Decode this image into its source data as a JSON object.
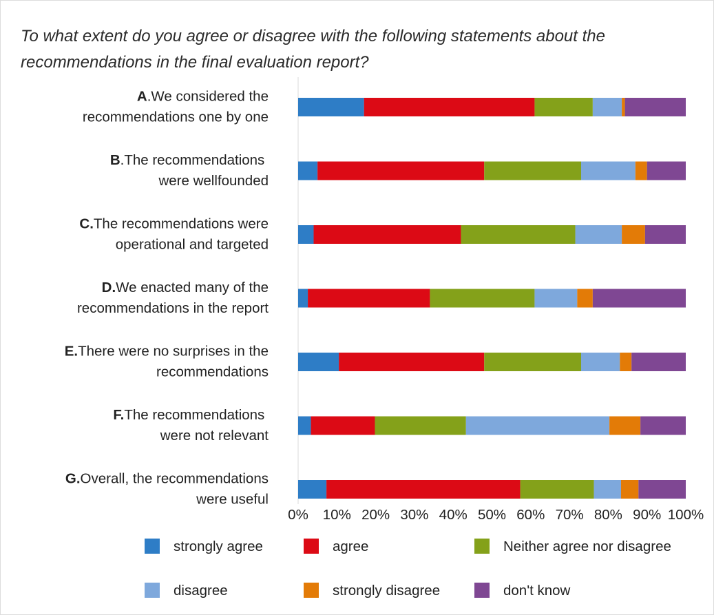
{
  "chart_data": {
    "type": "bar",
    "orientation": "horizontal",
    "stacked": true,
    "percent": true,
    "title": "To what extent do you agree or disagree with the following statements about the recommendations in the final evaluation report?",
    "categories": [
      {
        "letter": "A",
        "lines": [
          ".We considered the",
          "recommendations one by one"
        ]
      },
      {
        "letter": "B",
        "lines": [
          ".The recommendations ",
          "were wellfounded"
        ]
      },
      {
        "letter": "C.",
        "lines": [
          "The recommendations were",
          "operational and targeted"
        ]
      },
      {
        "letter": "D.",
        "lines": [
          "We enacted many of the",
          "recommendations in the report"
        ]
      },
      {
        "letter": "E.",
        "lines": [
          "There were no surprises in the",
          "recommendations"
        ]
      },
      {
        "letter": "F.",
        "lines": [
          "The recommendations ",
          "were not relevant"
        ]
      },
      {
        "letter": "G.",
        "lines": [
          "Overall, the recommendations",
          "were useful"
        ]
      }
    ],
    "series": [
      {
        "name": "strongly agree",
        "color": "#2e7dc6",
        "values": [
          17,
          5,
          4,
          2.5,
          10.5,
          3.3,
          7.3
        ]
      },
      {
        "name": "agree",
        "color": "#dc0a15",
        "values": [
          44,
          43,
          38,
          31.5,
          37.5,
          16.5,
          50
        ]
      },
      {
        "name": "Neither agree nor disagree",
        "color": "#84a11a",
        "values": [
          15,
          25,
          29.5,
          27,
          25,
          23.5,
          19
        ]
      },
      {
        "name": "disagree",
        "color": "#7ea8dc",
        "values": [
          7.5,
          14,
          12,
          11,
          10,
          37,
          7
        ]
      },
      {
        "name": "strongly disagree",
        "color": "#e37b07",
        "values": [
          0.8,
          3,
          6,
          4,
          3,
          8,
          4.5
        ]
      },
      {
        "name": "don't know",
        "color": "#7f4793",
        "values": [
          15.7,
          10,
          10.5,
          24,
          14,
          11.7,
          12.2
        ]
      }
    ],
    "xticks": [
      "0%",
      "10%",
      "20%",
      "30%",
      "40%",
      "50%",
      "60%",
      "70%",
      "80%",
      "90%",
      "100%"
    ],
    "xlim": [
      0,
      100
    ],
    "legend_position": "bottom",
    "grid": false
  }
}
